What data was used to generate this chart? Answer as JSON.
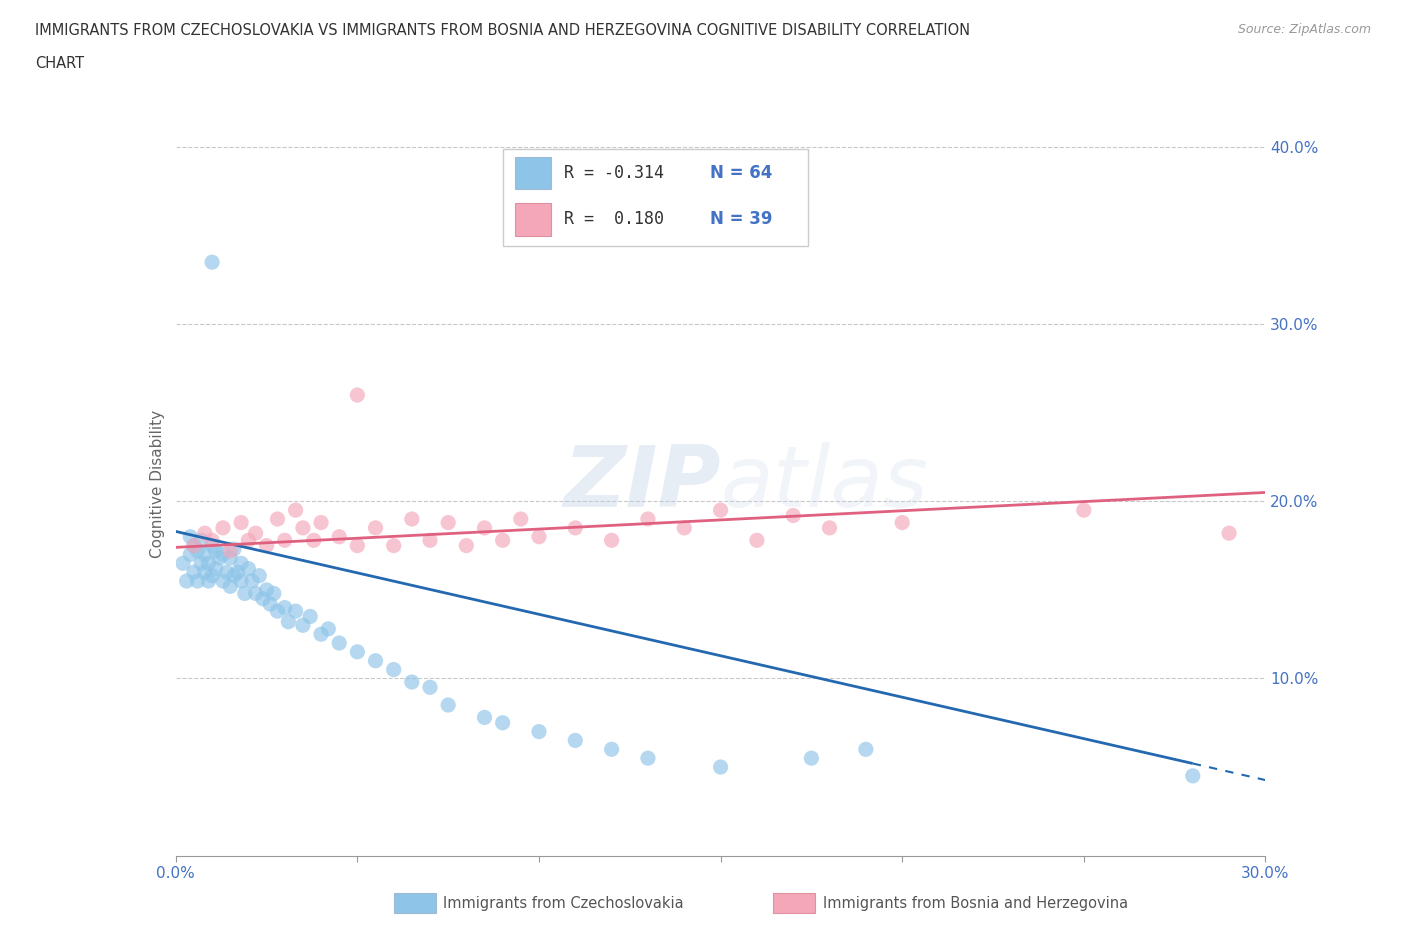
{
  "title_line1": "IMMIGRANTS FROM CZECHOSLOVAKIA VS IMMIGRANTS FROM BOSNIA AND HERZEGOVINA COGNITIVE DISABILITY CORRELATION",
  "title_line2": "CHART",
  "source": "Source: ZipAtlas.com",
  "ylabel": "Cognitive Disability",
  "xlim": [
    0.0,
    0.3
  ],
  "ylim": [
    0.0,
    0.42
  ],
  "color_czech": "#8ec4e8",
  "color_bosnia": "#f4a7b9",
  "color_line_czech": "#2469b0",
  "color_line_bosnia": "#e06080",
  "legend_label1": "Immigrants from Czechoslovakia",
  "legend_label2": "Immigrants from Bosnia and Herzegovina",
  "czech_line_x0": 0.0,
  "czech_line_y0": 0.183,
  "czech_line_x1": 0.28,
  "czech_line_y1": 0.052,
  "bosnia_line_x0": 0.0,
  "bosnia_line_y0": 0.174,
  "bosnia_line_x1": 0.3,
  "bosnia_line_y1": 0.205,
  "czech_scatter_x": [
    0.002,
    0.003,
    0.004,
    0.004,
    0.005,
    0.005,
    0.006,
    0.006,
    0.007,
    0.007,
    0.008,
    0.008,
    0.009,
    0.009,
    0.01,
    0.01,
    0.011,
    0.011,
    0.012,
    0.013,
    0.013,
    0.014,
    0.015,
    0.015,
    0.016,
    0.016,
    0.017,
    0.018,
    0.018,
    0.019,
    0.02,
    0.021,
    0.022,
    0.023,
    0.024,
    0.025,
    0.026,
    0.027,
    0.028,
    0.03,
    0.031,
    0.033,
    0.035,
    0.037,
    0.04,
    0.042,
    0.045,
    0.05,
    0.055,
    0.06,
    0.065,
    0.07,
    0.075,
    0.085,
    0.09,
    0.1,
    0.11,
    0.12,
    0.13,
    0.15,
    0.175,
    0.19,
    0.01,
    0.28
  ],
  "czech_scatter_y": [
    0.165,
    0.155,
    0.17,
    0.18,
    0.16,
    0.175,
    0.155,
    0.172,
    0.165,
    0.178,
    0.16,
    0.17,
    0.155,
    0.165,
    0.158,
    0.175,
    0.162,
    0.172,
    0.168,
    0.155,
    0.17,
    0.16,
    0.152,
    0.168,
    0.158,
    0.173,
    0.16,
    0.155,
    0.165,
    0.148,
    0.162,
    0.155,
    0.148,
    0.158,
    0.145,
    0.15,
    0.142,
    0.148,
    0.138,
    0.14,
    0.132,
    0.138,
    0.13,
    0.135,
    0.125,
    0.128,
    0.12,
    0.115,
    0.11,
    0.105,
    0.098,
    0.095,
    0.085,
    0.078,
    0.075,
    0.07,
    0.065,
    0.06,
    0.055,
    0.05,
    0.055,
    0.06,
    0.335,
    0.045
  ],
  "bosnia_scatter_x": [
    0.005,
    0.008,
    0.01,
    0.013,
    0.015,
    0.018,
    0.02,
    0.022,
    0.025,
    0.028,
    0.03,
    0.033,
    0.035,
    0.038,
    0.04,
    0.045,
    0.05,
    0.055,
    0.06,
    0.065,
    0.07,
    0.075,
    0.08,
    0.085,
    0.09,
    0.095,
    0.1,
    0.11,
    0.12,
    0.13,
    0.14,
    0.15,
    0.16,
    0.17,
    0.18,
    0.2,
    0.25,
    0.29,
    0.05
  ],
  "bosnia_scatter_y": [
    0.175,
    0.182,
    0.178,
    0.185,
    0.172,
    0.188,
    0.178,
    0.182,
    0.175,
    0.19,
    0.178,
    0.195,
    0.185,
    0.178,
    0.188,
    0.18,
    0.175,
    0.185,
    0.175,
    0.19,
    0.178,
    0.188,
    0.175,
    0.185,
    0.178,
    0.19,
    0.18,
    0.185,
    0.178,
    0.19,
    0.185,
    0.195,
    0.178,
    0.192,
    0.185,
    0.188,
    0.195,
    0.182,
    0.26
  ]
}
